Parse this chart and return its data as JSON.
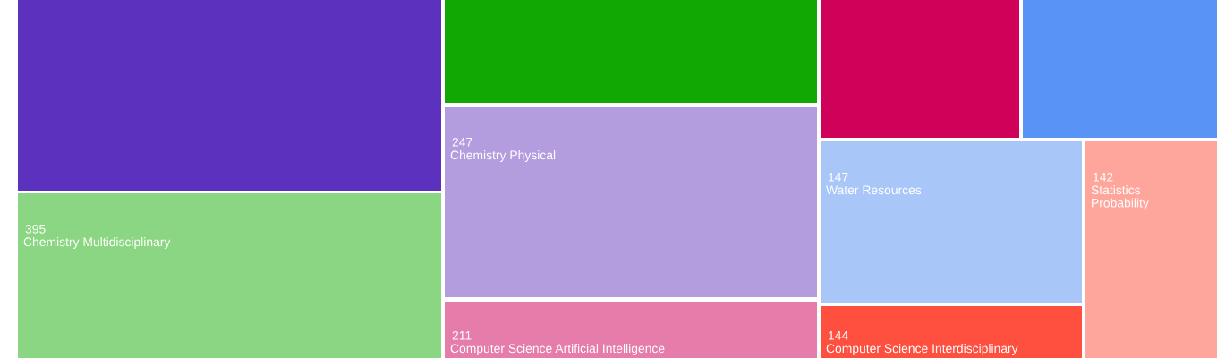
{
  "chart_data": {
    "type": "other",
    "categories": [
      null,
      "Chemistry Multidisciplinary",
      null,
      "Chemistry Physical",
      "Computer Science Artificial Intelligence",
      null,
      null,
      "Water Resources",
      "Statistics Probability",
      "Computer Science Interdisciplinary"
    ],
    "values": [
      null,
      395,
      null,
      247,
      211,
      null,
      null,
      147,
      142,
      144
    ],
    "colors": [
      "#5c31be",
      "#8bd682",
      "#12a803",
      "#b39ddf",
      "#e57ca9",
      "#d00158",
      "#5893f5",
      "#a8c6f8",
      "#fea59c",
      "#ff4f3f"
    ],
    "data_labels": true
  }
}
